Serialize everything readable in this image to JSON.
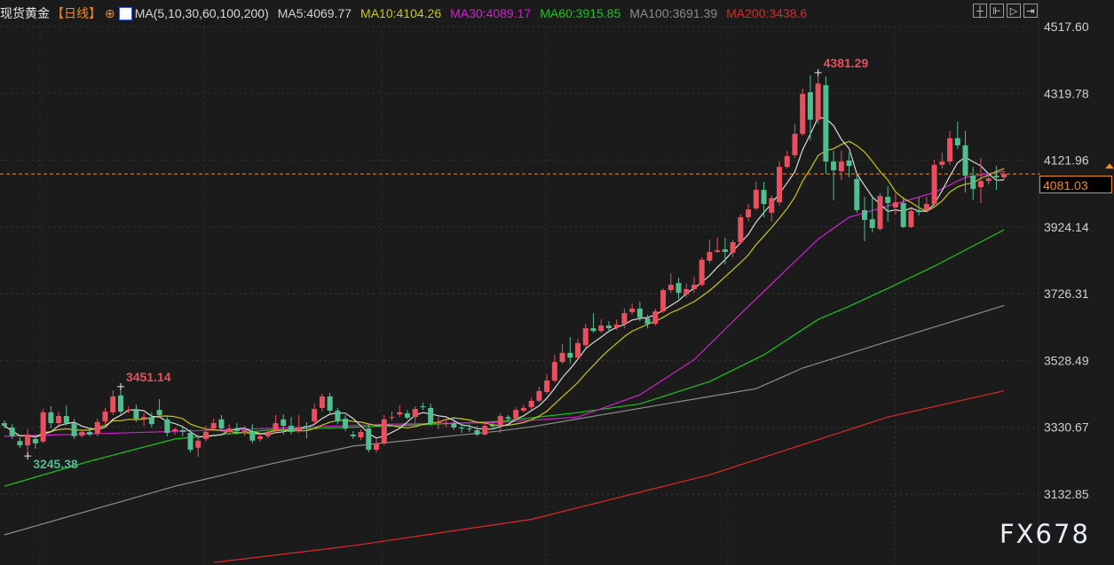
{
  "header": {
    "title": "现货黄金",
    "period": "【日线】",
    "ma_label": "MA(5,10,30,60,100,200)",
    "ma_values": [
      {
        "text": "MA5:4069.77",
        "color": "#d0d0d0"
      },
      {
        "text": "MA10:4104.26",
        "color": "#c8c810"
      },
      {
        "text": "MA30:4089.17",
        "color": "#d020d0"
      },
      {
        "text": "MA60:3915.85",
        "color": "#18c818"
      },
      {
        "text": "MA100:3691.39",
        "color": "#8c8c8c"
      },
      {
        "text": "MA200:3438.6",
        "color": "#e02828"
      }
    ],
    "tools": [
      "crosshair-icon",
      "zoom-start-icon",
      "play-icon",
      "goto-end-icon"
    ]
  },
  "watermark": "FX678",
  "last_price": "4081.03",
  "chart_data": {
    "type": "candlestick",
    "title": "",
    "colors": {
      "up": "#e9505f",
      "down": "#52bd8e",
      "ma5": "#d8d8d8",
      "ma10": "#c8c810",
      "ma30": "#d020d0",
      "ma60": "#18c818",
      "ma100": "#8c8c8c",
      "ma200": "#e02828",
      "last_line": "#f08a24"
    },
    "y_axis": {
      "position": "right",
      "ticks": [
        "4517.60",
        "4319.78",
        "4121.96",
        "3924.14",
        "3726.31",
        "3528.49",
        "3330.67",
        "3132.85"
      ],
      "range": [
        3132.85,
        4517.6
      ]
    },
    "grid": true,
    "annotations": [
      {
        "text": "4381.29",
        "index": 105,
        "type": "high",
        "color": "#e9505f"
      },
      {
        "text": "3451.14",
        "index": 15,
        "type": "high",
        "color": "#e9505f"
      },
      {
        "text": "3245.38",
        "index": 3,
        "type": "low",
        "color": "#52bd8e"
      }
    ],
    "ohlc": [
      [
        3343,
        3351,
        3327,
        3335
      ],
      [
        3330,
        3340,
        3296,
        3304
      ],
      [
        3290,
        3301,
        3269,
        3277
      ],
      [
        3277,
        3325,
        3245.38,
        3309
      ],
      [
        3296,
        3309,
        3267,
        3283
      ],
      [
        3288,
        3385,
        3283,
        3375
      ],
      [
        3375,
        3393,
        3327,
        3343
      ],
      [
        3343,
        3377,
        3335,
        3364
      ],
      [
        3364,
        3396,
        3335,
        3343
      ],
      [
        3343,
        3356,
        3296,
        3304
      ],
      [
        3306,
        3325,
        3301,
        3317
      ],
      [
        3317,
        3325,
        3304,
        3309
      ],
      [
        3312,
        3356,
        3304,
        3346
      ],
      [
        3348,
        3388,
        3340,
        3377
      ],
      [
        3375,
        3440,
        3367,
        3422
      ],
      [
        3425,
        3451.14,
        3369,
        3377
      ],
      [
        3380,
        3393,
        3372,
        3382
      ],
      [
        3382,
        3398,
        3346,
        3356
      ],
      [
        3356,
        3372,
        3335,
        3361
      ],
      [
        3361,
        3375,
        3330,
        3340
      ],
      [
        3382,
        3414,
        3361,
        3367
      ],
      [
        3354,
        3361,
        3304,
        3314
      ],
      [
        3319,
        3330,
        3309,
        3325
      ],
      [
        3322,
        3335,
        3304,
        3317
      ],
      [
        3314,
        3325,
        3256,
        3264
      ],
      [
        3270,
        3309,
        3243,
        3291
      ],
      [
        3296,
        3335,
        3288,
        3317
      ],
      [
        3327,
        3356,
        3319,
        3343
      ],
      [
        3354,
        3367,
        3319,
        3327
      ],
      [
        3317,
        3340,
        3309,
        3327
      ],
      [
        3325,
        3343,
        3309,
        3319
      ],
      [
        3314,
        3335,
        3306,
        3322
      ],
      [
        3317,
        3340,
        3283,
        3291
      ],
      [
        3296,
        3314,
        3288,
        3304
      ],
      [
        3304,
        3322,
        3298,
        3314
      ],
      [
        3322,
        3367,
        3314,
        3343
      ],
      [
        3354,
        3369,
        3309,
        3335
      ],
      [
        3335,
        3361,
        3309,
        3317
      ],
      [
        3322,
        3367,
        3314,
        3330
      ],
      [
        3335,
        3346,
        3298,
        3330
      ],
      [
        3348,
        3401,
        3340,
        3385
      ],
      [
        3388,
        3430,
        3377,
        3422
      ],
      [
        3422,
        3432,
        3372,
        3380
      ],
      [
        3380,
        3388,
        3340,
        3348
      ],
      [
        3356,
        3367,
        3319,
        3327
      ],
      [
        3309,
        3319,
        3296,
        3304
      ],
      [
        3301,
        3325,
        3293,
        3317
      ],
      [
        3327,
        3340,
        3256,
        3264
      ],
      [
        3264,
        3296,
        3256,
        3283
      ],
      [
        3283,
        3367,
        3277,
        3354
      ],
      [
        3359,
        3377,
        3351,
        3361
      ],
      [
        3369,
        3396,
        3361,
        3375
      ],
      [
        3372,
        3382,
        3354,
        3359
      ],
      [
        3361,
        3393,
        3343,
        3385
      ],
      [
        3393,
        3404,
        3382,
        3390
      ],
      [
        3388,
        3401,
        3335,
        3343
      ],
      [
        3343,
        3361,
        3325,
        3346
      ],
      [
        3340,
        3356,
        3330,
        3343
      ],
      [
        3343,
        3361,
        3322,
        3330
      ],
      [
        3330,
        3340,
        3314,
        3327
      ],
      [
        3327,
        3340,
        3317,
        3325
      ],
      [
        3322,
        3335,
        3304,
        3309
      ],
      [
        3309,
        3346,
        3306,
        3335
      ],
      [
        3338,
        3346,
        3325,
        3333
      ],
      [
        3335,
        3372,
        3314,
        3364
      ],
      [
        3361,
        3367,
        3348,
        3356
      ],
      [
        3356,
        3390,
        3351,
        3382
      ],
      [
        3380,
        3398,
        3375,
        3388
      ],
      [
        3390,
        3419,
        3382,
        3409
      ],
      [
        3409,
        3451,
        3404,
        3438
      ],
      [
        3435,
        3488,
        3430,
        3469
      ],
      [
        3469,
        3545,
        3464,
        3524
      ],
      [
        3524,
        3577,
        3519,
        3551
      ],
      [
        3551,
        3598,
        3519,
        3537
      ],
      [
        3537,
        3593,
        3532,
        3580
      ],
      [
        3574,
        3637,
        3566,
        3624
      ],
      [
        3624,
        3669,
        3611,
        3616
      ],
      [
        3616,
        3650,
        3611,
        3632
      ],
      [
        3632,
        3645,
        3611,
        3624
      ],
      [
        3627,
        3650,
        3619,
        3635
      ],
      [
        3637,
        3682,
        3624,
        3669
      ],
      [
        3672,
        3698,
        3664,
        3682
      ],
      [
        3682,
        3703,
        3645,
        3656
      ],
      [
        3653,
        3664,
        3624,
        3637
      ],
      [
        3637,
        3682,
        3632,
        3674
      ],
      [
        3674,
        3742,
        3669,
        3737
      ],
      [
        3737,
        3787,
        3729,
        3753
      ],
      [
        3758,
        3774,
        3711,
        3729
      ],
      [
        3724,
        3756,
        3716,
        3740
      ],
      [
        3740,
        3777,
        3729,
        3753
      ],
      [
        3753,
        3834,
        3748,
        3827
      ],
      [
        3824,
        3887,
        3816,
        3850
      ],
      [
        3850,
        3892,
        3848,
        3855
      ],
      [
        3858,
        3892,
        3813,
        3850
      ],
      [
        3848,
        3887,
        3834,
        3879
      ],
      [
        3879,
        3961,
        3874,
        3953
      ],
      [
        3953,
        3992,
        3940,
        3976
      ],
      [
        3979,
        4058,
        3974,
        4034
      ],
      [
        4034,
        4058,
        3953,
        3992
      ],
      [
        3966,
        4018,
        3940,
        4010
      ],
      [
        3997,
        4118,
        3987,
        4102
      ],
      [
        4102,
        4150,
        4097,
        4134
      ],
      [
        4137,
        4229,
        4129,
        4200
      ],
      [
        4200,
        4334,
        4194,
        4318
      ],
      [
        4323,
        4373,
        4181,
        4242
      ],
      [
        4242,
        4381.29,
        4229,
        4349
      ],
      [
        4344,
        4370,
        4081,
        4118
      ],
      [
        4118,
        4150,
        4003,
        4092
      ],
      [
        4089,
        4150,
        4063,
        4118
      ],
      [
        4121,
        4144,
        4071,
        4105
      ],
      [
        4066,
        4084,
        3966,
        3974
      ],
      [
        3974,
        4013,
        3882,
        3945
      ],
      [
        3947,
        4018,
        3908,
        3921
      ],
      [
        3918,
        4024,
        3913,
        4016
      ],
      [
        4013,
        4045,
        3940,
        3995
      ],
      [
        3982,
        4024,
        3961,
        3997
      ],
      [
        3995,
        4013,
        3921,
        3924
      ],
      [
        3924,
        3979,
        3921,
        3971
      ],
      [
        3974,
        4013,
        3958,
        3968
      ],
      [
        3974,
        4013,
        3966,
        3992
      ],
      [
        3992,
        4123,
        3987,
        4108
      ],
      [
        4108,
        4144,
        4097,
        4118
      ],
      [
        4118,
        4208,
        4108,
        4187
      ],
      [
        4187,
        4236,
        4155,
        4166
      ],
      [
        4166,
        4208,
        4026,
        4076
      ],
      [
        4076,
        4102,
        4005,
        4037
      ],
      [
        4042,
        4129,
        3995,
        4060
      ],
      [
        4060,
        4084,
        4050,
        4068
      ],
      [
        4076,
        4105,
        4034,
        4071
      ],
      [
        4071,
        4090,
        4065,
        4081.03
      ]
    ],
    "ma_lines": {
      "ma30": [
        [
          0,
          3304
        ],
        [
          17,
          3315
        ],
        [
          34,
          3327
        ],
        [
          50,
          3340
        ],
        [
          64,
          3345
        ],
        [
          74,
          3361
        ],
        [
          82,
          3427
        ],
        [
          89,
          3531
        ],
        [
          96,
          3689
        ],
        [
          105,
          3888
        ],
        [
          109,
          3953
        ],
        [
          114,
          3986
        ],
        [
          120,
          4026
        ],
        [
          124,
          4071
        ],
        [
          129,
          4089.17
        ]
      ],
      "ma60": [
        [
          0,
          3156
        ],
        [
          11,
          3230
        ],
        [
          22,
          3296
        ],
        [
          34,
          3322
        ],
        [
          50,
          3335
        ],
        [
          64,
          3348
        ],
        [
          74,
          3374
        ],
        [
          82,
          3400
        ],
        [
          91,
          3466
        ],
        [
          98,
          3545
        ],
        [
          105,
          3650
        ],
        [
          109,
          3689
        ],
        [
          114,
          3742
        ],
        [
          120,
          3808
        ],
        [
          129,
          3915.85
        ]
      ],
      "ma100": [
        [
          0,
          3012
        ],
        [
          22,
          3156
        ],
        [
          34,
          3220
        ],
        [
          45,
          3275
        ],
        [
          64,
          3320
        ],
        [
          68,
          3332
        ],
        [
          91,
          3422
        ],
        [
          97,
          3445
        ],
        [
          103,
          3506
        ],
        [
          114,
          3585
        ],
        [
          129,
          3691.39
        ]
      ],
      "ma200": [
        [
          27,
          2930
        ],
        [
          45,
          2980
        ],
        [
          68,
          3058
        ],
        [
          91,
          3190
        ],
        [
          114,
          3361
        ],
        [
          129,
          3438.6
        ]
      ]
    }
  }
}
